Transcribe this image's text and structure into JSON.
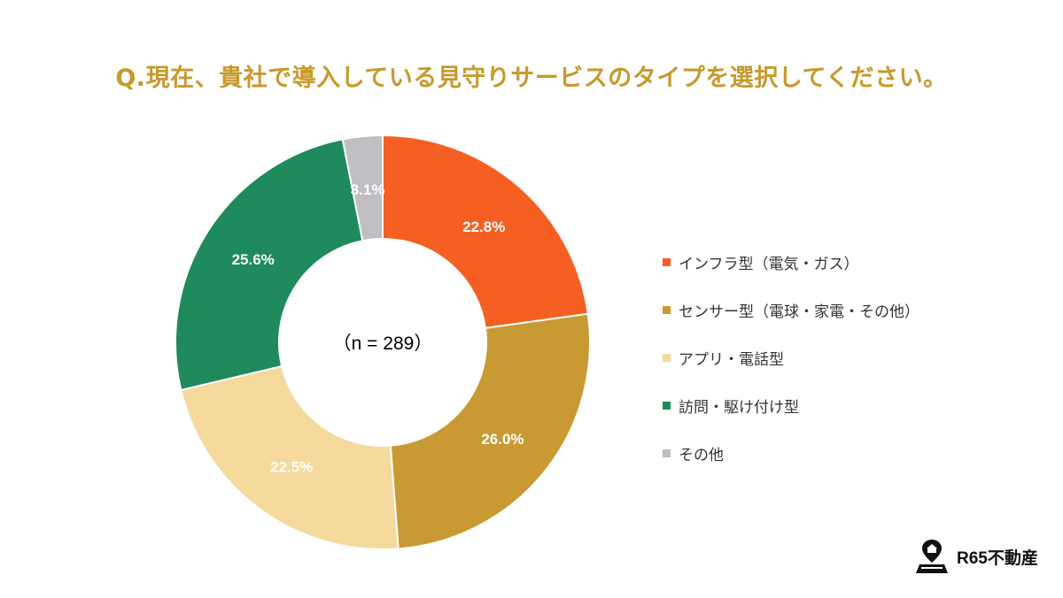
{
  "chart_data": {
    "type": "pie",
    "title": "Q.現在、貴社で導入している見守りサービスのタイプを選択してください。",
    "center_text": "（n = 289）",
    "categories": [
      "インフラ型（電気・ガス）",
      "センサー型（電球・家電・その他）",
      "アプリ・電話型",
      "訪問・駆け付け型",
      "その他"
    ],
    "values": [
      22.8,
      26.0,
      22.5,
      25.6,
      3.1
    ],
    "value_labels": [
      "22.8%",
      "26.0%",
      "22.5%",
      "25.6%",
      "3.1%"
    ],
    "colors": [
      "#f55f22",
      "#c99a34",
      "#f5d99d",
      "#1f8b5d",
      "#c1bec3"
    ],
    "legend_position": "right",
    "start_angle": "top",
    "direction": "clockwise"
  },
  "logo": {
    "text": "R65不動産"
  }
}
